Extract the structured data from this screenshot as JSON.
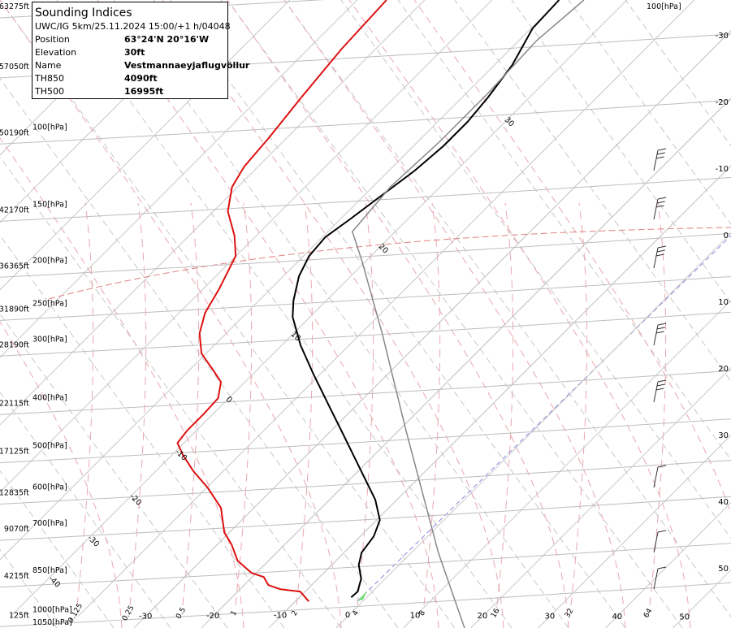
{
  "chart_data": {
    "type": "skewt",
    "info": {
      "title": "Sounding Indices",
      "subtitle": "UWC/IG 5km/25.11.2024 15:00/+1 h/04048",
      "rows": [
        [
          "Position",
          "63°24'N 20°16'W"
        ],
        [
          "Elevation",
          "30ft"
        ],
        [
          "Name",
          "Vestmannaeyjaflugvöllur"
        ],
        [
          "TH850",
          "4090ft"
        ],
        [
          "TH500",
          "16995ft"
        ]
      ]
    },
    "ylim": [
      -1200,
      63950
    ],
    "yticks": [
      {
        "value": 125,
        "label": "125ft"
      },
      {
        "value": 4215,
        "label": "4215ft"
      },
      {
        "value": 9070,
        "label": "9070ft"
      },
      {
        "value": 12835,
        "label": "12835ft"
      },
      {
        "value": 17125,
        "label": "17125ft"
      },
      {
        "value": 22115,
        "label": "22115ft"
      },
      {
        "value": 28190,
        "label": "28190ft"
      },
      {
        "value": 31890,
        "label": "31890ft"
      },
      {
        "value": 36365,
        "label": "36365ft"
      },
      {
        "value": 42170,
        "label": "42170ft"
      },
      {
        "value": 50190,
        "label": "50190ft"
      },
      {
        "value": 57050,
        "label": "57050ft"
      },
      {
        "value": 63275,
        "label": "63275ft"
      }
    ],
    "pressure_labels": [
      "1000[hPa]",
      "850[hPa]",
      "700[hPa]",
      "600[hPa]",
      "500[hPa]",
      "400[hPa]",
      "300[hPa]",
      "250[hPa]",
      "200[hPa]",
      "150[hPa]",
      "100[hPa]"
    ],
    "bottom_pressure_label": "1050[hPa]",
    "top_pressure_label": "100[hPa]",
    "xlim": [
      -51.6,
      56.9
    ],
    "xticks": [
      -30,
      -20,
      -10,
      0,
      10,
      20,
      30,
      40,
      50
    ],
    "mixing_ratio_labels": [
      0.125,
      0.25,
      0.5,
      1,
      2,
      4,
      8,
      16,
      32,
      64
    ],
    "diagonal_labels": [
      30,
      20,
      10,
      0,
      -10,
      -20,
      -30,
      -40
    ],
    "right_labels": [
      -30,
      -20,
      -10,
      0,
      10,
      20,
      30,
      40,
      50
    ],
    "series": [
      {
        "color": "#000000",
        "heights": [
          1980,
          2570,
          3920,
          5350,
          6620,
          8300,
          9990,
          12100,
          14210,
          16740,
          19270,
          21790,
          25170,
          28120,
          31070,
          32760,
          35290,
          37390,
          39330,
          41190,
          43720,
          46250,
          48780,
          51310,
          53840,
          57210,
          61000,
          63950
        ],
        "values": [
          -2.3,
          -2.2,
          -3.6,
          -6.0,
          -7.4,
          -8.0,
          -9.5,
          -13.2,
          -17.7,
          -23.1,
          -28.5,
          -33.9,
          -41.1,
          -47.2,
          -52.6,
          -54.9,
          -57.7,
          -59.2,
          -59.6,
          -58.6,
          -57.4,
          -56.2,
          -55.6,
          -55.6,
          -56.2,
          -57.4,
          -59.8,
          -60.1
        ]
      },
      {
        "color": "#dd1111",
        "heights": [
          1560,
          2570,
          2820,
          3250,
          4090,
          4510,
          5780,
          7460,
          8730,
          11260,
          13360,
          15050,
          16740,
          18000,
          19270,
          20950,
          22640,
          24320,
          25590,
          27270,
          29380,
          31490,
          34020,
          37390,
          39500,
          42030,
          44560,
          46670,
          49620,
          53830,
          58890,
          63950
        ],
        "values": [
          -8.0,
          -10.7,
          -14.0,
          -16.4,
          -18.3,
          -20.7,
          -24.6,
          -27.9,
          -30.8,
          -34.9,
          -39.9,
          -44.4,
          -48.4,
          -51.0,
          -51.4,
          -51.4,
          -51.6,
          -53.6,
          -56.6,
          -60.7,
          -64.0,
          -66.2,
          -67.7,
          -70.1,
          -73.3,
          -77.9,
          -80.9,
          -82.1,
          -82.7,
          -83.9,
          -85.1,
          -85.7
        ]
      },
      {
        "color": "#888888",
        "heights": [
          -1220,
          6620,
          19270,
          29380,
          36970,
          39920,
          44560,
          49200,
          54250,
          59730,
          63950
        ],
        "values": [
          19.1,
          4.0,
          -18.9,
          -36.9,
          -50.8,
          -56.4,
          -57.4,
          -56.8,
          -56.8,
          -57.4,
          -56.4
        ]
      }
    ]
  }
}
